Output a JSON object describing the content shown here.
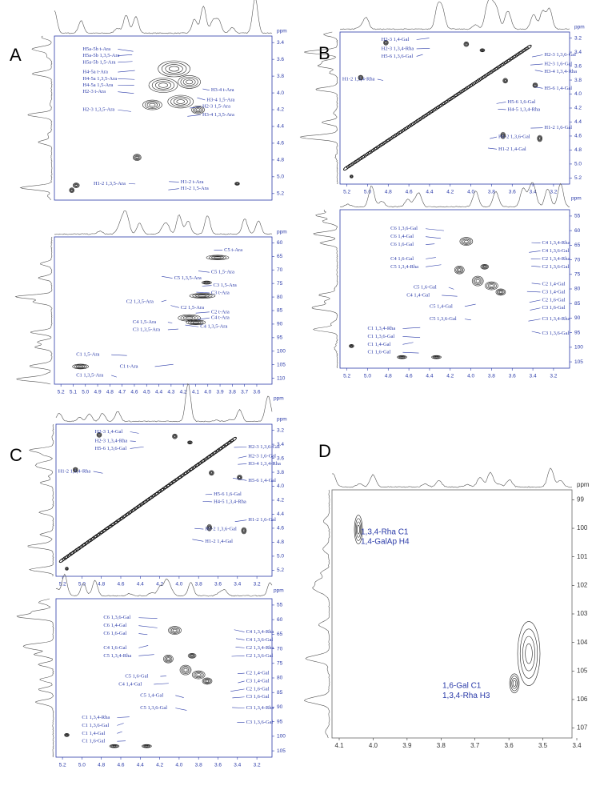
{
  "panels": [
    {
      "label": "A",
      "plots": [
        {
          "y_unit": "ppm",
          "yticks": [
            "3.4",
            "3.6",
            "3.8",
            "4.0",
            "4.2",
            "4.4",
            "4.6",
            "4.8",
            "5.0",
            "5.2"
          ],
          "xticks": [],
          "annotations": [
            "H5a-5b t-Ara",
            "H5a-5b 1,3,5-Ara",
            "H5a-5b 1,5-Ara",
            "H4-5a t-Ara",
            "H4-5a 1,3,5-Ara",
            "H4-5a 1,5-Ara",
            "H2-3 t-Ara",
            "H3-4 t-Ara",
            "H3-4 1,5-Ara",
            "H2-3 1,5-Ara",
            "H2-3 1,3,5-Ara",
            "H3-4 1,3,5-Ara",
            "H1-2 1,3,5-Ara",
            "H1-2 t-Ara",
            "H1-2 1,5-Ara"
          ]
        },
        {
          "y_unit": "ppm",
          "x_unit": "ppm",
          "yticks": [
            "60",
            "65",
            "70",
            "75",
            "80",
            "85",
            "90",
            "95",
            "100",
            "105",
            "110"
          ],
          "xticks": [
            "5.2",
            "5.1",
            "5.0",
            "4.9",
            "4.8",
            "4.7",
            "4.6",
            "4.5",
            "4.4",
            "4.3",
            "4.2",
            "4.1",
            "4.0",
            "3.9",
            "3.8",
            "3.7",
            "3.6"
          ],
          "annotations": [
            "C5 t-Ara",
            "C5 1,3,5-Ara",
            "C5 1,5-Ara",
            "C3 1,5-Ara",
            "C3 t-Ara",
            "C2 1,3,5-Ara",
            "C2 1,5-Ara",
            "C2 t-Ara",
            "C4 t-Ara",
            "C4 1,5-Ara",
            "C4 1,3,5-Ara",
            "C3 1,3,5-Ara",
            "C1 1,5-Ara",
            "C1 t-Ara",
            "C1 1,3,5-Ara"
          ]
        }
      ]
    },
    {
      "label": "B",
      "plots": [
        {
          "y_unit": "ppm",
          "x_unit": "ppm",
          "yticks": [
            "3.2",
            "3.4",
            "3.6",
            "3.8",
            "4.0",
            "4.2",
            "4.4",
            "4.6",
            "4.8",
            "5.0",
            "5.2"
          ],
          "xticks": [
            "5.2",
            "5.0",
            "4.8",
            "4.6",
            "4.4",
            "4.2",
            "4.0",
            "3.8",
            "3.6",
            "3.4",
            "3.2"
          ],
          "annotations": [
            "H2-3 1,4-Gal",
            "H2-3 1,3,4-Rha",
            "H5-6 1,3,6-Gal",
            "H1-2 1,3,4-Rha",
            "H2-3 1,3,6-Gal",
            "H2-3 1,6-Gal",
            "H3-4 1,3,4-Rha",
            "H5-6 1,4-Gal",
            "H5-6 1,6-Gal",
            "H4-5 1,3,4-Rha",
            "H1-2 1,6-Gal",
            "H1-2 1,3,6-Gal",
            "H1-2 1,4-Gal"
          ]
        },
        {
          "yticks": [
            "55",
            "60",
            "65",
            "70",
            "75",
            "80",
            "85",
            "90",
            "95",
            "100",
            "105"
          ],
          "xticks": [
            "5.2",
            "5.0",
            "4.8",
            "4.6",
            "4.4",
            "4.2",
            "4.0",
            "3.8",
            "3.6",
            "3.4",
            "3.2"
          ],
          "annotations": [
            "C6 1,3,6-Gal",
            "C6 1,4-Gal",
            "C6 1,6-Gal",
            "C4 1,6-Gal",
            "C5 1,3,4-Rha",
            "C5 1,6-Gal",
            "C4 1,4-Gal",
            "C5 1,4-Gal",
            "C5 1,3,6-Gal",
            "C4 1,3,4-Rha",
            "C4 1,3,6-Gal",
            "C2 1,3,4-Rha",
            "C2 1,3,6-Gal",
            "C2 1,4-Gal",
            "C3 1,4-Gal",
            "C2 1,6-Gal",
            "C3 1,6-Gal",
            "C3 1,3,4-Rha",
            "C3 1,3,6-Gal",
            "C1 1,3,4-Rha",
            "C1 1,3,6-Gal",
            "C1 1,4-Gal",
            "C1 1,6-Gal"
          ]
        }
      ]
    },
    {
      "label": "C",
      "plots": [
        {
          "y_unit": "ppm",
          "x_unit": "ppm",
          "yticks": [
            "3.2",
            "3.4",
            "3.6",
            "3.8",
            "4.0",
            "4.2",
            "4.4",
            "4.6",
            "4.8",
            "5.0",
            "5.2"
          ],
          "xticks": [
            "5.2",
            "5.0",
            "4.8",
            "4.6",
            "4.4",
            "4.2",
            "4.0",
            "3.8",
            "3.6",
            "3.4",
            "3.2"
          ],
          "annotations": [
            "H2-3 1,4-Gal",
            "H2-3 1,3,4-Rha",
            "H5-6 1,3,6-Gal",
            "H1-2 1,3,4-Rha",
            "H2-3 1,3,6-Gal",
            "H2-3 1,6-Gal",
            "H3-4 1,3,4-Rha",
            "H5-6 1,4-Gal",
            "H5-6 1,6-Gal",
            "H4-5 1,3,4-Rha",
            "H1-2 1,6-Gal",
            "H1-2 1,3,6-Gal",
            "H1-2 1,4-Gal"
          ]
        },
        {
          "yticks": [
            "55",
            "60",
            "65",
            "70",
            "75",
            "80",
            "85",
            "90",
            "95",
            "100",
            "105"
          ],
          "xticks": [
            "5.2",
            "5.0",
            "4.8",
            "4.6",
            "4.4",
            "4.2",
            "4.0",
            "3.8",
            "3.6",
            "3.4",
            "3.2"
          ],
          "annotations": [
            "C6 1,3,6-Gal",
            "C6 1,4-Gal",
            "C6 1,6-Gal",
            "C4 1,6-Gal",
            "C5 1,3,4-Rha",
            "C5 1,6-Gal",
            "C4 1,4-Gal",
            "C5 1,4-Gal",
            "C5 1,3,6-Gal",
            "C4 1,3,4-Rha",
            "C4 1,3,6-Gal",
            "C2 1,3,4-Rha",
            "C2 1,3,6-Gal",
            "C2 1,4-Gal",
            "C3 1,4-Gal",
            "C2 1,6-Gal",
            "C3 1,6-Gal",
            "C3 1,3,4-Rha",
            "C3 1,3,6-Gal",
            "C1 1,3,4-Rha",
            "C1 1,3,6-Gal",
            "C1 1,4-Gal",
            "C1 1,6-Gal"
          ]
        }
      ]
    },
    {
      "label": "D",
      "plots": [
        {
          "y_unit": "ppm",
          "yticks": [
            "99",
            "100",
            "101",
            "102",
            "103",
            "104",
            "105",
            "106",
            "107"
          ],
          "xticks": [
            "4.1",
            "4.0",
            "3.9",
            "3.8",
            "3.7",
            "3.6",
            "3.5",
            "3.4"
          ],
          "annotations": [
            "1,3,4-Rha C1",
            "1,4-GalAp H4",
            "1,6-Gal C1",
            "1,3,4-Rha H3"
          ]
        }
      ]
    }
  ]
}
